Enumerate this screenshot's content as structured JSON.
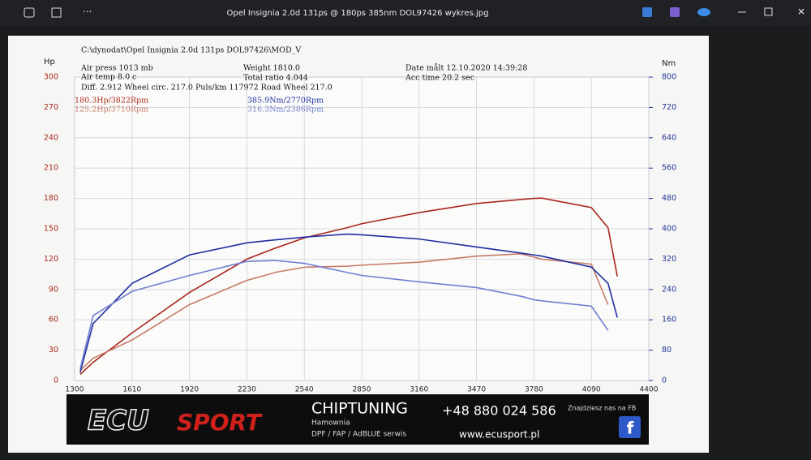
{
  "window": {
    "title": "Opel Insignia 2.0d 131ps @ 180ps 385nm DOL97426 wykres.jpg"
  },
  "chart_data": {
    "type": "line",
    "header": [
      "C:\\dynodat\\Opel Insignia 2.0d 131ps DOL97426\\MOD_V",
      "Air press  1013 mb",
      "Air temp   8.0 c",
      "Diff.   2.912   Wheel circ. 217.0   Puls/km  117972   Road Wheel 217.0",
      "Weight   1810.0",
      "Total ratio 4.044",
      "Date målt 12.10.2020 14:39:28",
      "Acc time   20.2 sec"
    ],
    "ylabel": "Hp",
    "y2label": "Nm",
    "x": [
      1330,
      1400,
      1610,
      1920,
      2230,
      2386,
      2540,
      2770,
      2850,
      3160,
      3470,
      3710,
      3780,
      3822,
      4090,
      4180,
      4230
    ],
    "xlim": [
      1300,
      4400
    ],
    "xticks": [
      1300,
      1610,
      1920,
      2230,
      2540,
      2850,
      3160,
      3470,
      3780,
      4090,
      4400
    ],
    "ylim": [
      0,
      300
    ],
    "yticks": [
      0,
      30,
      60,
      90,
      120,
      150,
      180,
      210,
      240,
      270,
      300
    ],
    "y2lim": [
      0,
      800
    ],
    "y2ticks": [
      0,
      80,
      160,
      240,
      320,
      400,
      480,
      560,
      640,
      720,
      800
    ],
    "ycolor": "#a8281c",
    "y2color": "#24359a",
    "grid": true,
    "series": [
      {
        "name": "180.3Hp/3822Rpm",
        "color": "#a8281c",
        "axis": "y",
        "values": [
          6,
          18,
          47,
          87,
          120,
          131,
          141,
          151,
          155,
          166,
          175,
          179,
          180,
          180.3,
          171,
          151,
          103
        ]
      },
      {
        "name": "125.2Hp/3710Rpm",
        "color": "#c77a66",
        "axis": "y",
        "values": [
          10,
          22,
          40,
          75,
          99,
          107,
          112,
          113,
          114,
          117,
          123,
          125.2,
          122,
          120,
          115,
          75,
          null
        ]
      },
      {
        "name": "385.9Nm/2770Rpm",
        "color": "#1f2fa0",
        "axis": "y2",
        "values": [
          21,
          150,
          256,
          331,
          363,
          371,
          378,
          385.9,
          384,
          373,
          352,
          336,
          331,
          328,
          299,
          256,
          166
        ]
      },
      {
        "name": "316.3Nm/2386Rpm",
        "color": "#6f7fd0",
        "axis": "y2",
        "values": [
          30,
          171,
          235,
          277,
          314,
          316.3,
          309,
          285,
          277,
          260,
          245,
          222,
          213,
          210,
          196,
          132,
          null
        ]
      }
    ]
  },
  "banner": {
    "logo_a": "ECU",
    "logo_b": "SPORT",
    "heading": "CHIPTUNING",
    "line1": "Hamownia",
    "line2": "DPF / FAP / AdBLUE serwis",
    "phone": "+48 880 024 586",
    "web": "www.ecusport.pl",
    "fb": "Znajdziesz nas na FB"
  }
}
